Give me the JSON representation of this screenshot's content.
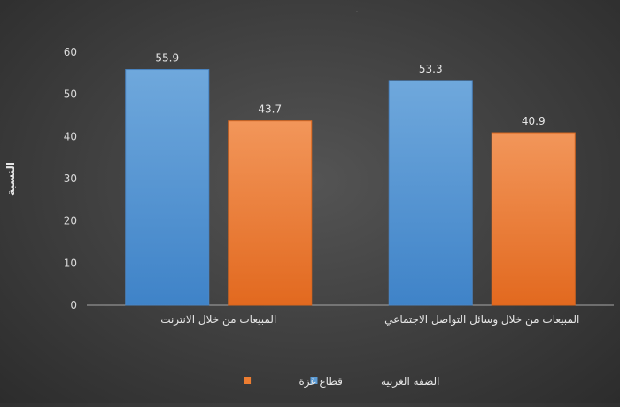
{
  "chart_data": {
    "type": "bar",
    "title": ".",
    "ylabel": "النسبة",
    "xlabel": "",
    "ylim": [
      0,
      60
    ],
    "yticks": [
      0,
      10,
      20,
      30,
      40,
      50,
      60
    ],
    "categories": [
      "المبيعات من خلال الانترنت",
      "المبيعات من خلال وسائل التواصل الاجتماعي"
    ],
    "series": [
      {
        "name": "الضفة الغربية",
        "values": [
          55.9,
          53.3
        ],
        "color": "#5b9bd5"
      },
      {
        "name": "قطاع غزة",
        "values": [
          43.7,
          40.9
        ],
        "color": "#ed7d31"
      }
    ],
    "data_labels": true,
    "grid": false,
    "legend": "bottom-center"
  }
}
